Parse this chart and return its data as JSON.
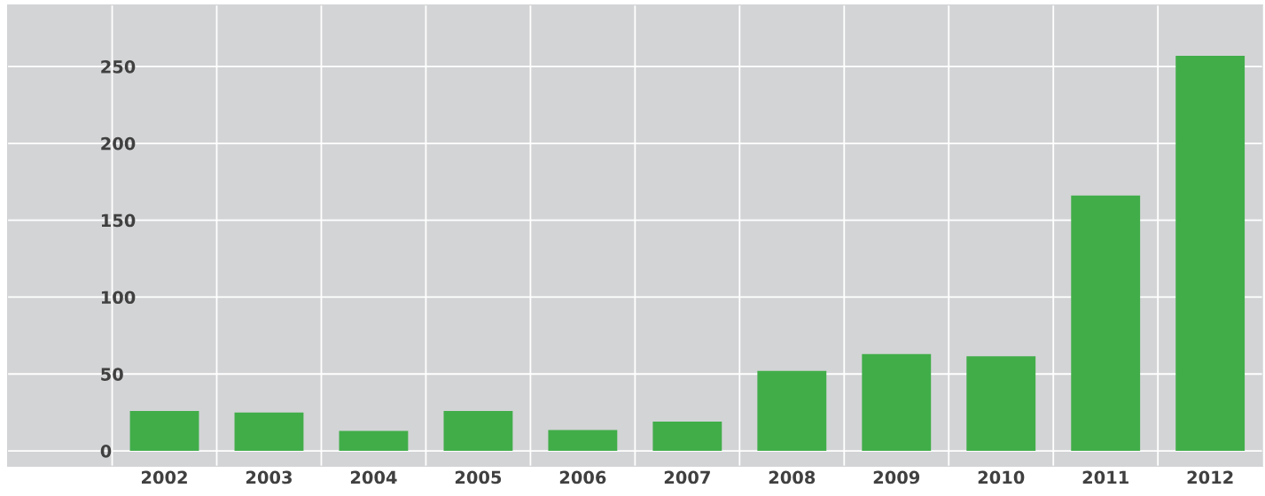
{
  "chart_data": {
    "type": "bar",
    "categories": [
      "2002",
      "2003",
      "2004",
      "2005",
      "2006",
      "2007",
      "2008",
      "2009",
      "2010",
      "2011",
      "2012"
    ],
    "values": [
      26,
      25,
      13,
      26,
      13.5,
      19,
      52,
      63,
      61.5,
      166,
      257
    ],
    "color": "#41ad49",
    "ylim": [
      -10,
      290
    ],
    "yticks": [
      0,
      50,
      100,
      150,
      200,
      250
    ],
    "grid": true
  }
}
